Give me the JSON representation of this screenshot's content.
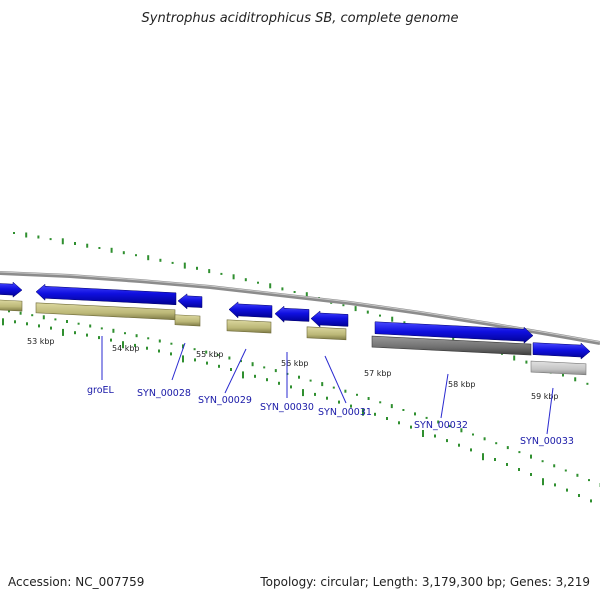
{
  "title": "Syntrophus aciditrophicus SB, complete genome",
  "footer": {
    "accession": "Accession: NC_007759",
    "topology": "Topology: circular; Length: 3,179,300 bp; Genes: 3,219"
  },
  "scale_labels": [
    "53 kbp",
    "54 kbp",
    "55 kbp",
    "56 kbp",
    "57 kbp",
    "58 kbp",
    "59 kbp"
  ],
  "gene_labels": [
    "groEL",
    "SYN_00028",
    "SYN_00029",
    "SYN_00030",
    "SYN_00031",
    "SYN_00032",
    "SYN_00033"
  ],
  "colors": {
    "cds_forward": "#1010e0",
    "gene_feature": "#bcb878",
    "gene_feature_grey": "#707070",
    "gene_feature_light": "#bdbdbd",
    "backbone": "#8c8c8c",
    "gc_ticks": "#2f8f2f",
    "label_text": "#1a1aa8",
    "leader_line": "#2a2ad0"
  }
}
